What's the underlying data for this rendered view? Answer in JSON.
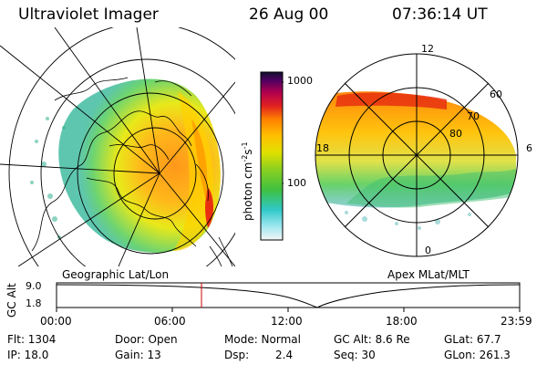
{
  "header": {
    "instrument": "Ultraviolet Imager",
    "date": "26 Aug 00",
    "time": "07:36:14 UT"
  },
  "colorbar": {
    "unit_label": "photon cm",
    "unit_exp1": "-2",
    "unit_mid": "s",
    "unit_exp2": "-1",
    "tick_high": "1000",
    "tick_mid": "100"
  },
  "geo_panel": {
    "label": "Geographic Lat/Lon"
  },
  "apex_panel": {
    "label": "Apex MLat/MLT",
    "mlt_top": "12",
    "mlt_left": "18",
    "mlt_right": "6",
    "mlt_bottom": "0",
    "lat_60": "60",
    "lat_70": "70",
    "lat_80": "80"
  },
  "altitude_plot": {
    "ylabel": "GC Alt",
    "ytick_high": "9.0",
    "ytick_low": "1.8",
    "xticks": [
      "00:00",
      "06:00",
      "12:00",
      "18:00",
      "23:59"
    ]
  },
  "info": {
    "flt": "Flt: 1304",
    "ip": "IP: 18.0",
    "door": "Door: Open",
    "gain": "Gain: 13",
    "mode": "Mode: Normal",
    "dsp_label": "Dsp:",
    "dsp_value": "2.4",
    "gc_alt": "GC Alt: 8.6 Re",
    "seq": "Seq: 30",
    "glat": "GLat:  67.7",
    "glon": "GLon: 261.3"
  },
  "colors": {
    "marker": "#cc0000",
    "coast": "#000000"
  }
}
